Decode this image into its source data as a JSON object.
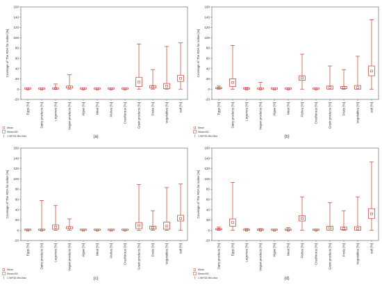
{
  "legend": {
    "mean": "Mean",
    "se": "Mean±SD",
    "range": "1.96*SD Min-Max"
  },
  "colors": {
    "box": "#c0392b",
    "axis": "#555555",
    "grid": "#cccccc"
  },
  "chart_data": [
    {
      "type": "box",
      "label": "(a)",
      "ylabel": "Coverage of The RDA for iodine [%]",
      "ylim": [
        -20,
        160
      ],
      "yticks": [
        -20,
        0,
        20,
        40,
        60,
        80,
        100,
        120,
        140,
        160
      ],
      "categories": [
        "Eggs [%]",
        "Dairy products [%]",
        "Legumes [%]",
        "Vegan products [%]",
        "Algae [%]",
        "Meat [%]",
        "Fishes [%]",
        "Cruciferous [%]",
        "Grain products [%]",
        "Fruits [%]",
        "Vegetables [%]",
        "salt [%]"
      ],
      "series": [
        {
          "mean": 0,
          "box": [
            0,
            1
          ],
          "whisker": [
            0,
            1
          ]
        },
        {
          "mean": 0,
          "box": [
            0,
            1
          ],
          "whisker": [
            0,
            1
          ]
        },
        {
          "mean": 1,
          "box": [
            0,
            2
          ],
          "whisker": [
            0,
            10
          ]
        },
        {
          "mean": 4,
          "box": [
            2,
            6
          ],
          "whisker": [
            0,
            28
          ]
        },
        {
          "mean": 0,
          "box": [
            0,
            1
          ],
          "whisker": [
            0,
            1
          ]
        },
        {
          "mean": 0,
          "box": [
            0,
            1
          ],
          "whisker": [
            0,
            1
          ]
        },
        {
          "mean": 0,
          "box": [
            0,
            1
          ],
          "whisker": [
            0,
            1
          ]
        },
        {
          "mean": 0,
          "box": [
            0,
            1
          ],
          "whisker": [
            0,
            1
          ]
        },
        {
          "mean": 14,
          "box": [
            5,
            23
          ],
          "whisker": [
            0,
            88
          ]
        },
        {
          "mean": 4,
          "box": [
            2,
            7
          ],
          "whisker": [
            0,
            38
          ]
        },
        {
          "mean": 6,
          "box": [
            1,
            11
          ],
          "whisker": [
            0,
            83
          ]
        },
        {
          "mean": 21,
          "box": [
            15,
            27
          ],
          "whisker": [
            0,
            90
          ]
        }
      ]
    },
    {
      "type": "box",
      "label": "(b)",
      "ylabel": "Coverage of The RDA for iodine [%]",
      "ylim": [
        -20,
        160
      ],
      "yticks": [
        -20,
        0,
        20,
        40,
        60,
        80,
        100,
        120,
        140,
        160
      ],
      "categories": [
        "Eggs [%]",
        "Dairy products [%]",
        "Legumes [%]",
        "Vegan products [%]",
        "Algae [%]",
        "Meat [%]",
        "Fishes [%]",
        "Cruciferous [%]",
        "Grain products [%]",
        "Fruits [%]",
        "Vegetables [%]",
        "salt [%]"
      ],
      "series": [
        {
          "mean": 2,
          "box": [
            1,
            3
          ],
          "whisker": [
            0,
            6
          ]
        },
        {
          "mean": 13,
          "box": [
            5,
            20
          ],
          "whisker": [
            0,
            85
          ]
        },
        {
          "mean": 0,
          "box": [
            0,
            1
          ],
          "whisker": [
            0,
            3
          ]
        },
        {
          "mean": 0,
          "box": [
            0,
            1
          ],
          "whisker": [
            0,
            13
          ]
        },
        {
          "mean": 0,
          "box": [
            0,
            1
          ],
          "whisker": [
            0,
            1
          ]
        },
        {
          "mean": 0,
          "box": [
            0,
            1
          ],
          "whisker": [
            0,
            2
          ]
        },
        {
          "mean": 22,
          "box": [
            17,
            26
          ],
          "whisker": [
            0,
            68
          ]
        },
        {
          "mean": 0,
          "box": [
            0,
            1
          ],
          "whisker": [
            0,
            1
          ]
        },
        {
          "mean": 3,
          "box": [
            0,
            6
          ],
          "whisker": [
            0,
            45
          ]
        },
        {
          "mean": 3,
          "box": [
            1,
            5
          ],
          "whisker": [
            0,
            38
          ]
        },
        {
          "mean": 3,
          "box": [
            0,
            7
          ],
          "whisker": [
            0,
            64
          ]
        },
        {
          "mean": 35,
          "box": [
            26,
            45
          ],
          "whisker": [
            0,
            135
          ]
        }
      ]
    },
    {
      "type": "box",
      "label": "(c)",
      "ylabel": "Coverage of The RDA for iodine [%]",
      "ylim": [
        -20,
        160
      ],
      "yticks": [
        -20,
        0,
        20,
        40,
        60,
        80,
        100,
        120,
        140,
        160
      ],
      "categories": [
        "Eggs [%]",
        "Dairy products [%]",
        "Legumes [%]",
        "Vegan products [%]",
        "Algae [%]",
        "Meat [%]",
        "Fishes [%]",
        "Cruciferous [%]",
        "Grain products [%]",
        "Fruits [%]",
        "Vegetables [%]",
        "salt [%]"
      ],
      "series": [
        {
          "mean": 0,
          "box": [
            0,
            1
          ],
          "whisker": [
            0,
            2
          ]
        },
        {
          "mean": 0,
          "box": [
            0,
            1
          ],
          "whisker": [
            0,
            58
          ]
        },
        {
          "mean": 6,
          "box": [
            2,
            10
          ],
          "whisker": [
            0,
            48
          ]
        },
        {
          "mean": 5,
          "box": [
            3,
            7
          ],
          "whisker": [
            0,
            22
          ]
        },
        {
          "mean": 0,
          "box": [
            0,
            1
          ],
          "whisker": [
            0,
            1
          ]
        },
        {
          "mean": 0,
          "box": [
            0,
            1
          ],
          "whisker": [
            0,
            1
          ]
        },
        {
          "mean": 0,
          "box": [
            0,
            1
          ],
          "whisker": [
            0,
            1
          ]
        },
        {
          "mean": 0,
          "box": [
            0,
            1
          ],
          "whisker": [
            0,
            1
          ]
        },
        {
          "mean": 9,
          "box": [
            3,
            15
          ],
          "whisker": [
            0,
            89
          ]
        },
        {
          "mean": 5,
          "box": [
            2,
            8
          ],
          "whisker": [
            0,
            38
          ]
        },
        {
          "mean": 8,
          "box": [
            2,
            16
          ],
          "whisker": [
            0,
            83
          ]
        },
        {
          "mean": 23,
          "box": [
            18,
            29
          ],
          "whisker": [
            0,
            90
          ]
        }
      ]
    },
    {
      "type": "box",
      "label": "(d)",
      "ylabel": "Coverage of The RDA for iodine [%]",
      "ylim": [
        -20,
        160
      ],
      "yticks": [
        -20,
        0,
        20,
        40,
        60,
        80,
        100,
        120,
        140,
        160
      ],
      "categories": [
        "Dairy products [%]",
        "Eggs [%]",
        "Legumes [%]",
        "Vegan products [%]",
        "Algae [%]",
        "Meat [%]",
        "Fishes [%]",
        "Cruciferous [%]",
        "Grain products [%]",
        "Fruits [%]",
        "Vegetables [%]",
        "salt [%]"
      ],
      "series": [
        {
          "mean": 2,
          "box": [
            1,
            3
          ],
          "whisker": [
            0,
            6
          ]
        },
        {
          "mean": 15,
          "box": [
            8,
            22
          ],
          "whisker": [
            0,
            93
          ]
        },
        {
          "mean": 0,
          "box": [
            0,
            1
          ],
          "whisker": [
            0,
            3
          ]
        },
        {
          "mean": 0,
          "box": [
            0,
            1
          ],
          "whisker": [
            0,
            3
          ]
        },
        {
          "mean": 0,
          "box": [
            0,
            1
          ],
          "whisker": [
            0,
            1
          ]
        },
        {
          "mean": 0,
          "box": [
            0,
            1
          ],
          "whisker": [
            0,
            5
          ]
        },
        {
          "mean": 23,
          "box": [
            18,
            28
          ],
          "whisker": [
            0,
            65
          ]
        },
        {
          "mean": 0,
          "box": [
            0,
            1
          ],
          "whisker": [
            0,
            1
          ]
        },
        {
          "mean": 4,
          "box": [
            0,
            8
          ],
          "whisker": [
            0,
            54
          ]
        },
        {
          "mean": 3,
          "box": [
            1,
            6
          ],
          "whisker": [
            0,
            38
          ]
        },
        {
          "mean": 3,
          "box": [
            0,
            7
          ],
          "whisker": [
            0,
            65
          ]
        },
        {
          "mean": 32,
          "box": [
            23,
            42
          ],
          "whisker": [
            0,
            133
          ]
        }
      ]
    }
  ]
}
